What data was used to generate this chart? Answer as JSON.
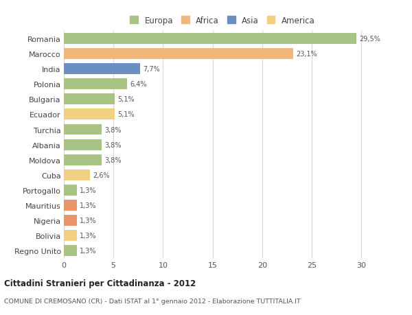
{
  "countries": [
    "Romania",
    "Marocco",
    "India",
    "Polonia",
    "Bulgaria",
    "Ecuador",
    "Turchia",
    "Albania",
    "Moldova",
    "Cuba",
    "Portogallo",
    "Mauritius",
    "Nigeria",
    "Bolivia",
    "Regno Unito"
  ],
  "values": [
    29.5,
    23.1,
    7.7,
    6.4,
    5.1,
    5.1,
    3.8,
    3.8,
    3.8,
    2.6,
    1.3,
    1.3,
    1.3,
    1.3,
    1.3
  ],
  "labels": [
    "29,5%",
    "23,1%",
    "7,7%",
    "6,4%",
    "5,1%",
    "5,1%",
    "3,8%",
    "3,8%",
    "3,8%",
    "2,6%",
    "1,3%",
    "1,3%",
    "1,3%",
    "1,3%",
    "1,3%"
  ],
  "colors": [
    "#a8c484",
    "#f0b87e",
    "#6b8fc2",
    "#a8c484",
    "#a8c484",
    "#f2d080",
    "#a8c484",
    "#a8c484",
    "#a8c484",
    "#f2d080",
    "#a8c484",
    "#e8956a",
    "#e8956a",
    "#f2d080",
    "#a8c484"
  ],
  "legend_labels": [
    "Europa",
    "Africa",
    "Asia",
    "America"
  ],
  "legend_colors": [
    "#a8c484",
    "#f0b87e",
    "#6b8fc2",
    "#f2d080"
  ],
  "title": "Cittadini Stranieri per Cittadinanza - 2012",
  "subtitle": "COMUNE DI CREMOSANO (CR) - Dati ISTAT al 1° gennaio 2012 - Elaborazione TUTTITALIA.IT",
  "xlim": [
    0,
    32
  ],
  "xticks": [
    0,
    5,
    10,
    15,
    20,
    25,
    30
  ],
  "bg_color": "#ffffff",
  "grid_color": "#d8d8d8",
  "bar_height": 0.72
}
